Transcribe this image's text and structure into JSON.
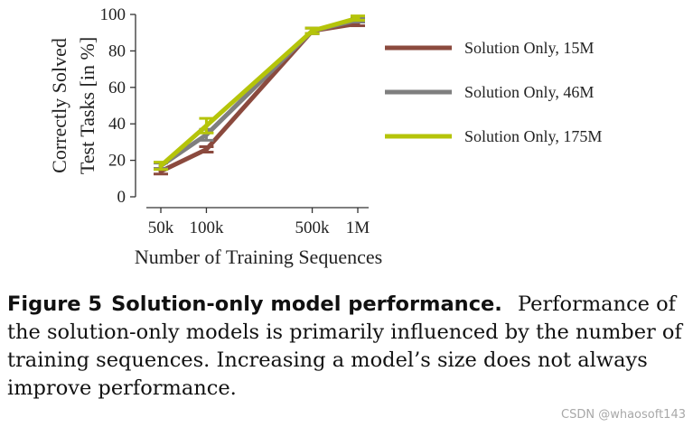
{
  "chart_data": {
    "type": "line",
    "title": "",
    "xlabel": "Number of Training Sequences",
    "ylabel_lines": [
      "Correctly Solved",
      "Test Tasks [in %]"
    ],
    "x": [
      50000,
      100000,
      500000,
      1000000
    ],
    "x_tick_labels": [
      "50k",
      "100k",
      "500k",
      "1M"
    ],
    "x_scale": "log",
    "ylim": [
      0,
      100
    ],
    "y_ticks": [
      0,
      20,
      40,
      60,
      80,
      100
    ],
    "grid": false,
    "legend_position": "right",
    "series": [
      {
        "name": "Solution Only, 15M",
        "color": "#8b4a3e",
        "values": [
          14,
          26,
          91,
          95
        ],
        "err": [
          1.5,
          1.5,
          1.5,
          1.2
        ]
      },
      {
        "name": "Solution Only, 46M",
        "color": "#7f7f7f",
        "values": [
          17,
          34,
          91,
          97
        ],
        "err": [
          1.5,
          3,
          1.5,
          1.2
        ]
      },
      {
        "name": "Solution Only, 175M",
        "color": "#b5c40a",
        "values": [
          17,
          39,
          91,
          98
        ],
        "err": [
          2,
          4,
          1.5,
          1.2
        ]
      }
    ]
  },
  "caption": {
    "label": "Figure 5",
    "bold_title": "Solution-only model performance.",
    "text": "Performance of the solution-only models is primarily influenced by the number of training sequences. Increasing a model’s size does not always improve performance."
  },
  "watermark": "CSDN @whaosoft143"
}
